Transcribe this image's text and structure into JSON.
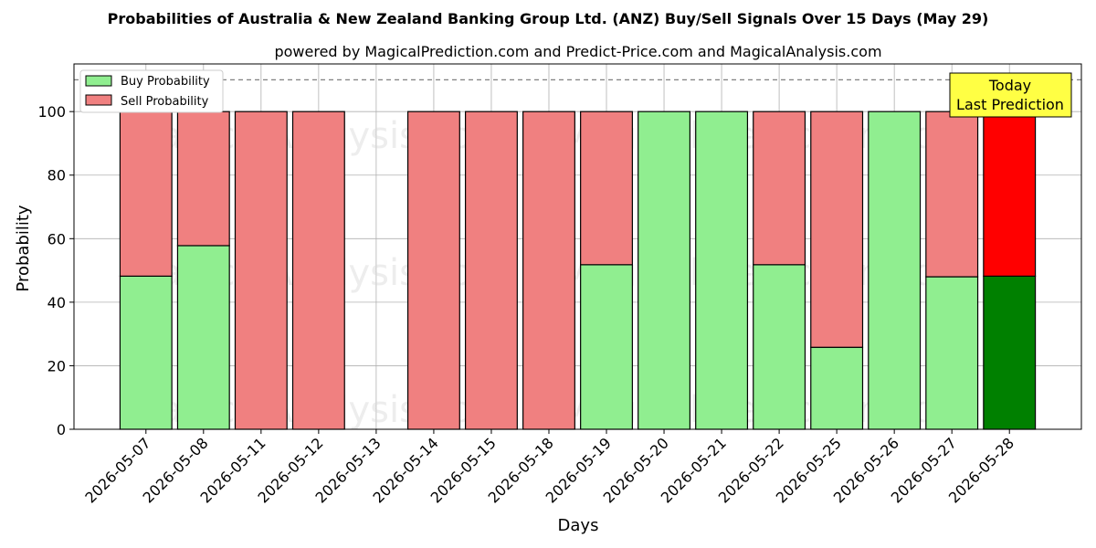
{
  "chart_data": {
    "type": "bar",
    "stacked": true,
    "title": "Probabilities of Australia & New Zealand Banking Group Ltd. (ANZ) Buy/Sell Signals Over 15 Days (May 29)",
    "subtitle": "powered by MagicalPrediction.com and Predict-Price.com and MagicalAnalysis.com",
    "xlabel": "Days",
    "ylabel": "Probability",
    "ylim": [
      0,
      115
    ],
    "yticks": [
      0,
      20,
      40,
      60,
      80,
      100
    ],
    "reference_line": 110,
    "grid": true,
    "legend_position": "top-left",
    "categories": [
      "2026-05-07",
      "2026-05-08",
      "2026-05-11",
      "2026-05-12",
      "2026-05-13",
      "2026-05-14",
      "2026-05-15",
      "2026-05-18",
      "2026-05-19",
      "2026-05-20",
      "2026-05-21",
      "2026-05-22",
      "2026-05-25",
      "2026-05-26",
      "2026-05-27",
      "2026-05-28"
    ],
    "series": [
      {
        "name": "Buy Probability",
        "color": "#90ee90",
        "highlight_color": "#008000",
        "values": [
          48.2,
          57.8,
          0,
          0,
          0,
          0,
          0,
          0,
          51.8,
          100,
          100,
          51.8,
          25.8,
          100,
          48.0,
          48.2
        ]
      },
      {
        "name": "Sell Probability",
        "color": "#f08080",
        "highlight_color": "#ff0000",
        "values": [
          51.8,
          42.2,
          100,
          100,
          0,
          100,
          100,
          100,
          48.2,
          0,
          0,
          48.2,
          74.2,
          0,
          52.0,
          51.8
        ]
      }
    ],
    "highlight_index": 15,
    "annotation": {
      "lines": [
        "Today",
        "Last Prediction"
      ],
      "background": "#ffff44"
    },
    "watermarks": [
      "MagicalAnalysis.com",
      "MagicalPrediction.com"
    ]
  }
}
